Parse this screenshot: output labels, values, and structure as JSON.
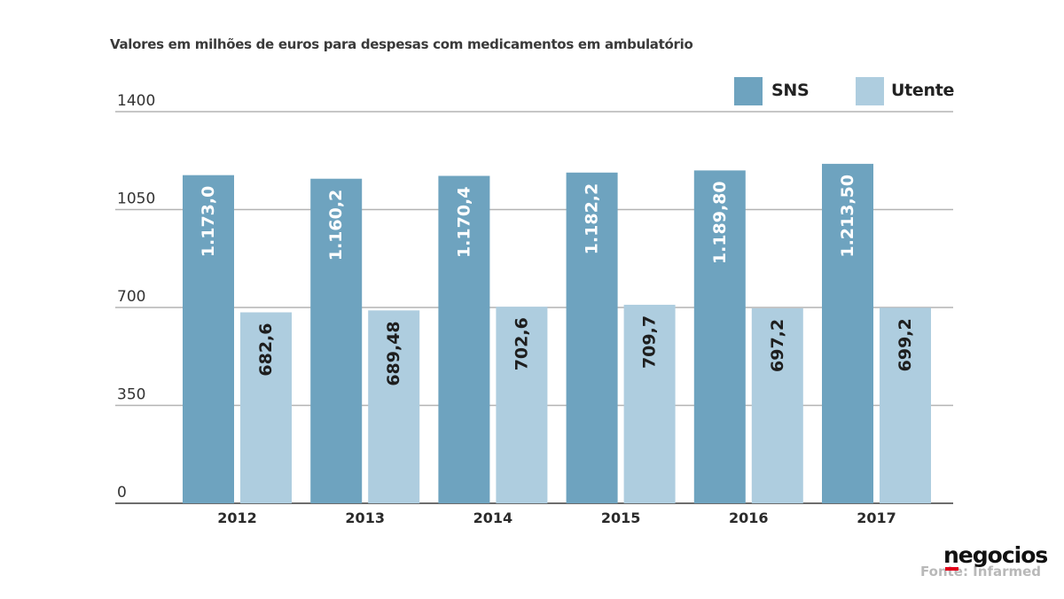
{
  "chart_data": {
    "type": "bar",
    "subtitle": "Valores em milhões de euros para despesas com medicamentos em ambulatório",
    "categories": [
      "2012",
      "2013",
      "2014",
      "2015",
      "2016",
      "2017"
    ],
    "series": [
      {
        "name": "SNS",
        "color": "#6ea3bf",
        "values": [
          1173.0,
          1160.2,
          1170.4,
          1182.2,
          1189.8,
          1213.5
        ],
        "labels": [
          "1.173,0",
          "1.160,2",
          "1.170,4",
          "1.182,2",
          "1.189,80",
          "1.213,50"
        ]
      },
      {
        "name": "Utente",
        "color": "#aecddf",
        "values": [
          682.6,
          689.48,
          702.6,
          709.7,
          697.2,
          699.2
        ],
        "labels": [
          "682,6",
          "689,48",
          "702,6",
          "709,7",
          "697,2",
          "699,2"
        ]
      }
    ],
    "ylim": [
      0,
      1400
    ],
    "yticks": [
      0,
      350,
      700,
      1050,
      1400
    ],
    "ytick_labels": [
      "0",
      "350",
      "700",
      "1050",
      "1400"
    ],
    "grid": true,
    "legend_position": "top-right",
    "xlabel": "",
    "ylabel": ""
  },
  "source": "Fonte: Infarmed",
  "logo": "negocios",
  "logo_accent": "#e2001a"
}
